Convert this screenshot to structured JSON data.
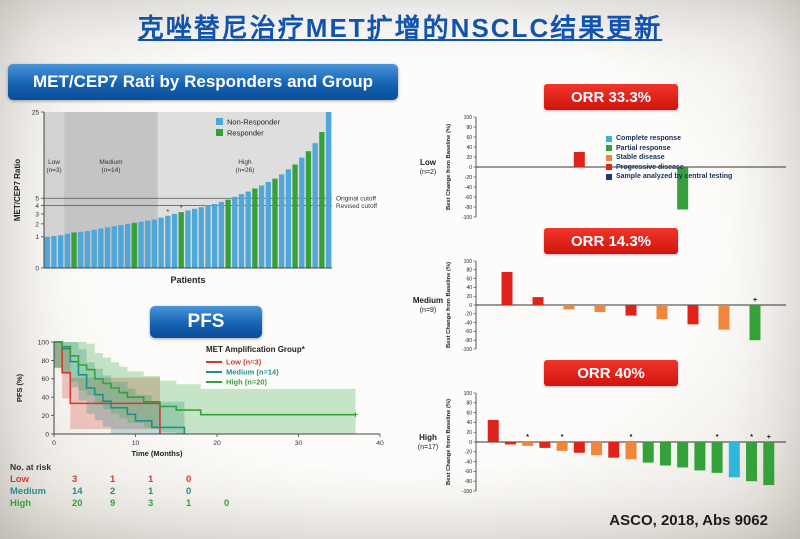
{
  "slide": {
    "title": "克唑替尼治疗MET扩增的NSCLC结果更新",
    "footer": "ASCO, 2018, Abs 9062"
  },
  "left_panel": {
    "pfs_header": "PFS",
    "risk_table": {
      "title": "No. at risk",
      "rows": [
        {
          "label": "Low",
          "color": "#d23b2e",
          "values": [
            "3",
            "1",
            "1",
            "0"
          ]
        },
        {
          "label": "Medium",
          "color": "#1f8e8e",
          "values": [
            "14",
            "2",
            "1",
            "0"
          ]
        },
        {
          "label": "High",
          "color": "#35a13b",
          "values": [
            "20",
            "9",
            "3",
            "1",
            "0"
          ]
        }
      ]
    }
  },
  "response_legend": {
    "items": [
      {
        "label": "Complete response",
        "color": "#2fb6d9"
      },
      {
        "label": "Partial response",
        "color": "#35a13b"
      },
      {
        "label": "Stable disease",
        "color": "#f0853c"
      },
      {
        "label": "Progressive disease",
        "color": "#e02318"
      },
      {
        "label": "Sample analyzed by central testing",
        "color": "#1d3a6e"
      }
    ]
  },
  "response_colors": {
    "CR": "#2fb6d9",
    "PR": "#35a13b",
    "SD": "#f0853c",
    "PD": "#e02318"
  },
  "chart_data": [
    {
      "id": "met_cep7_ratio",
      "type": "bar",
      "title": "MET/CEP7 Rati by Responders and Group",
      "xlabel": "Patients",
      "ylabel": "MET/CEP7 Ratio",
      "ylim": [
        0,
        25
      ],
      "yticks": [
        0,
        1,
        2,
        3,
        4,
        5,
        25
      ],
      "legend": [
        {
          "label": "Non-Responder",
          "color": "#4fa6d8"
        },
        {
          "label": "Responder",
          "color": "#35a13b"
        }
      ],
      "cutoffs": [
        {
          "label": "Original cutoff",
          "value": 5
        },
        {
          "label": "Revised cutoff",
          "value": 4
        }
      ],
      "groups": [
        {
          "name": "Low",
          "n_label": "(n=3)",
          "size": 3,
          "bg": "#d2d2d2"
        },
        {
          "name": "Medium",
          "n_label": "(n=14)",
          "size": 14,
          "bg": "#c4c4c4"
        },
        {
          "name": "High",
          "n_label": "(n=26)",
          "size": 26,
          "bg": "#dedede"
        }
      ],
      "values": [
        1.0,
        1.05,
        1.1,
        1.2,
        1.3,
        1.35,
        1.4,
        1.5,
        1.6,
        1.7,
        1.8,
        1.9,
        2.0,
        2.1,
        2.2,
        2.3,
        2.4,
        2.6,
        2.8,
        3.0,
        3.2,
        3.4,
        3.6,
        3.8,
        4.0,
        4.2,
        4.5,
        4.8,
        5.2,
        5.6,
        6.0,
        6.5,
        7.0,
        7.6,
        8.2,
        9.0,
        10,
        11,
        12.5,
        14,
        16,
        19,
        25
      ],
      "responder_indices": [
        4,
        13,
        20,
        27,
        31,
        34,
        37,
        39,
        41
      ],
      "marker_indices": [
        18,
        20
      ]
    },
    {
      "id": "pfs_kaplan_meier",
      "type": "line",
      "xlabel": "Time (Months)",
      "ylabel": "PFS (%)",
      "xlim": [
        0,
        40
      ],
      "ylim": [
        0,
        100
      ],
      "xticks": [
        0,
        10,
        20,
        30,
        40
      ],
      "yticks": [
        0,
        20,
        40,
        60,
        80,
        100
      ],
      "legend_title": "MET Amplification Group*",
      "series": [
        {
          "name": "Low (n=3)",
          "color": "#d23b2e",
          "points": [
            [
              0,
              100
            ],
            [
              1,
              66.7
            ],
            [
              2,
              33.3
            ],
            [
              13,
              0
            ]
          ]
        },
        {
          "name": "Medium (n=14)",
          "color": "#1f8e8e",
          "points": [
            [
              0,
              100
            ],
            [
              1,
              92.9
            ],
            [
              2,
              78.6
            ],
            [
              3,
              64.3
            ],
            [
              4,
              50
            ],
            [
              5,
              42.9
            ],
            [
              6,
              35.7
            ],
            [
              7,
              28.6
            ],
            [
              9,
              21.4
            ],
            [
              10,
              14.3
            ],
            [
              12,
              7.1
            ],
            [
              16,
              0
            ]
          ]
        },
        {
          "name": "High (n=20)",
          "color": "#35a13b",
          "points": [
            [
              0,
              100
            ],
            [
              1,
              95
            ],
            [
              2,
              85
            ],
            [
              3,
              75
            ],
            [
              4,
              70
            ],
            [
              5,
              60
            ],
            [
              6,
              55
            ],
            [
              7,
              50
            ],
            [
              8,
              45
            ],
            [
              9,
              40
            ],
            [
              11,
              35
            ],
            [
              13,
              30
            ],
            [
              15,
              26
            ],
            [
              18,
              21
            ],
            [
              37,
              21
            ]
          ],
          "censors": [
            [
              37,
              21
            ]
          ]
        }
      ]
    },
    {
      "id": "waterfall_low",
      "type": "bar",
      "orr_label": "ORR 33.3%",
      "group_name": "Low",
      "group_n": "(n=2)",
      "ylabel": "Best Change from Baseline (%)",
      "ylim": [
        -100,
        100
      ],
      "ytick_step": 20,
      "bars": [
        {
          "value": 30,
          "response": "PD"
        },
        {
          "value": -85,
          "response": "PR"
        }
      ]
    },
    {
      "id": "waterfall_medium",
      "type": "bar",
      "orr_label": "ORR 14.3%",
      "group_name": "Medium",
      "group_n": "(n=9)",
      "ylabel": "Best Change from Baseline (%)",
      "ylim": [
        -100,
        100
      ],
      "ytick_step": 20,
      "bars": [
        {
          "value": 75,
          "response": "PD"
        },
        {
          "value": 18,
          "response": "PD"
        },
        {
          "value": -10,
          "response": "SD"
        },
        {
          "value": -16,
          "response": "SD"
        },
        {
          "value": -24,
          "response": "PD"
        },
        {
          "value": -32,
          "response": "SD"
        },
        {
          "value": -44,
          "response": "PD"
        },
        {
          "value": -56,
          "response": "SD"
        },
        {
          "value": -80,
          "response": "PR",
          "marker": "+"
        }
      ]
    },
    {
      "id": "waterfall_high",
      "type": "bar",
      "orr_label": "ORR 40%",
      "group_name": "High",
      "group_n": "(n=17)",
      "ylabel": "Best Change from Baseline (%)",
      "ylim": [
        -100,
        100
      ],
      "ytick_step": 20,
      "bars": [
        {
          "value": 45,
          "response": "PD"
        },
        {
          "value": -5,
          "response": "PD"
        },
        {
          "value": -8,
          "response": "SD",
          "marker": "*"
        },
        {
          "value": -12,
          "response": "PD"
        },
        {
          "value": -18,
          "response": "SD",
          "marker": "*"
        },
        {
          "value": -22,
          "response": "PD"
        },
        {
          "value": -27,
          "response": "SD"
        },
        {
          "value": -32,
          "response": "PD"
        },
        {
          "value": -35,
          "response": "SD",
          "marker": "*"
        },
        {
          "value": -42,
          "response": "PR"
        },
        {
          "value": -48,
          "response": "PR"
        },
        {
          "value": -52,
          "response": "PR"
        },
        {
          "value": -58,
          "response": "PR"
        },
        {
          "value": -63,
          "response": "PR",
          "marker": "*"
        },
        {
          "value": -72,
          "response": "CR"
        },
        {
          "value": -80,
          "response": "PR",
          "marker": "*"
        },
        {
          "value": -88,
          "response": "PR",
          "marker": "+"
        }
      ]
    }
  ]
}
